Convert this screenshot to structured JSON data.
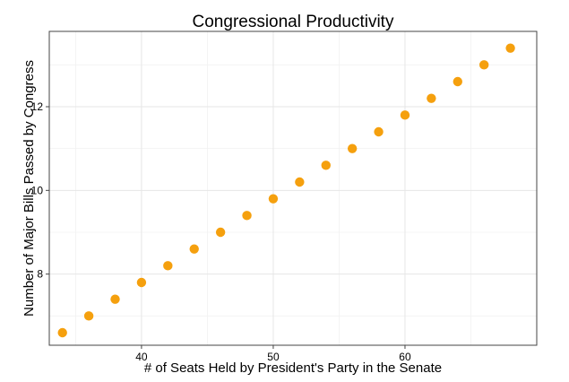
{
  "chart_data": {
    "type": "scatter",
    "title": "Congressional Productivity",
    "xlabel": "# of Seats Held by President's Party in the Senate",
    "ylabel": "Number of Major Bills Passed by Congress",
    "xlim": [
      33,
      70
    ],
    "ylim": [
      6.3,
      13.8
    ],
    "xticks": [
      40,
      50,
      60
    ],
    "yticks": [
      8,
      10,
      12
    ],
    "grid": true,
    "marker_color": "#F5A00E",
    "x": [
      34,
      36,
      38,
      40,
      42,
      44,
      46,
      48,
      50,
      52,
      54,
      56,
      58,
      60,
      62,
      64,
      66,
      68
    ],
    "y": [
      6.6,
      7.0,
      7.4,
      7.8,
      8.2,
      8.6,
      9.0,
      9.4,
      9.8,
      10.2,
      10.6,
      11.0,
      11.4,
      11.8,
      12.2,
      12.6,
      13.0,
      13.4
    ]
  }
}
